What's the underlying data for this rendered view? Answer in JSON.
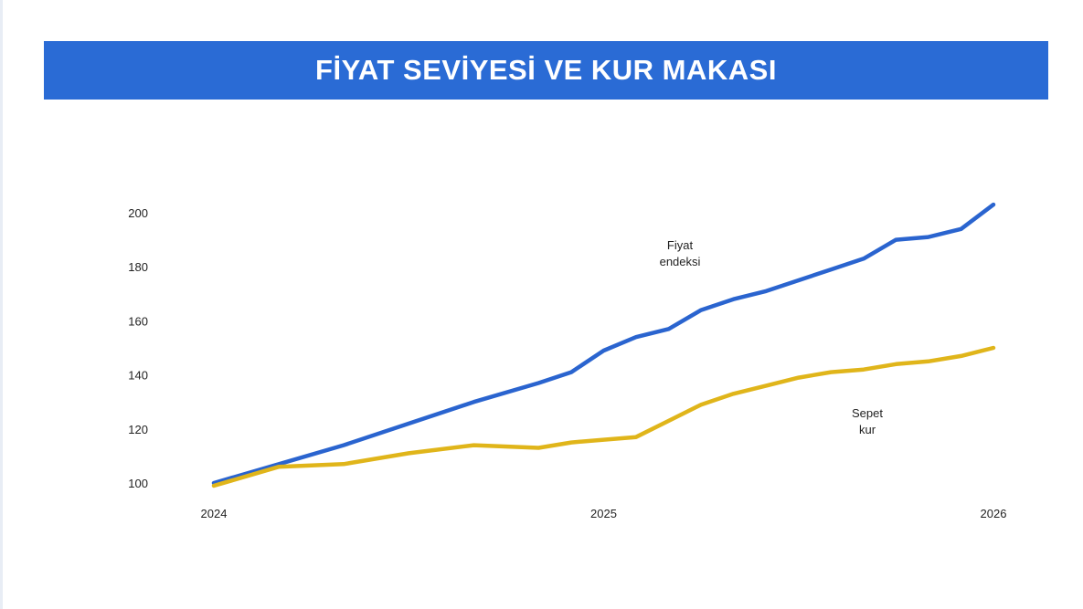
{
  "title": "FİYAT SEVİYESİ VE KUR MAKASI",
  "colors": {
    "title_bar": "#2a6bd5",
    "price_index": "#2a64cf",
    "basket_fx": "#e0b51a",
    "text": "#222222",
    "background": "#ffffff"
  },
  "chart_data": {
    "type": "line",
    "title": "FİYAT SEVİYESİ VE KUR MAKASI",
    "xlabel": "",
    "ylabel": "",
    "xlim": [
      2024,
      2026
    ],
    "ylim": [
      100,
      200
    ],
    "x_ticks": [
      "2024",
      "2025",
      "2026"
    ],
    "y_ticks": [
      "100",
      "120",
      "140",
      "160",
      "180",
      "200"
    ],
    "grid": false,
    "legend": "none",
    "series": [
      {
        "name": "Fiyat endeksi",
        "label_lines": [
          "Fiyat",
          "endeksi"
        ],
        "color": "#2a64cf",
        "x": [
          2024.0,
          2024.167,
          2024.333,
          2024.5,
          2024.667,
          2024.833,
          2024.917,
          2025.0,
          2025.083,
          2025.167,
          2025.25,
          2025.333,
          2025.417,
          2025.5,
          2025.583,
          2025.667,
          2025.75,
          2025.833,
          2025.917,
          2026.0
        ],
        "values": [
          100,
          107,
          114,
          122,
          130,
          137,
          141,
          149,
          154,
          157,
          164,
          168,
          171,
          175,
          179,
          183,
          190,
          191,
          194,
          203
        ]
      },
      {
        "name": "Sepet kur",
        "label_lines": [
          "Sepet",
          "kur"
        ],
        "color": "#e0b51a",
        "x": [
          2024.0,
          2024.167,
          2024.333,
          2024.5,
          2024.667,
          2024.833,
          2024.917,
          2025.0,
          2025.083,
          2025.167,
          2025.25,
          2025.333,
          2025.417,
          2025.5,
          2025.583,
          2025.667,
          2025.75,
          2025.833,
          2025.917,
          2026.0
        ],
        "values": [
          99,
          106,
          107,
          111,
          114,
          113,
          115,
          116,
          117,
          123,
          129,
          133,
          136,
          139,
          141,
          142,
          144,
          145,
          147,
          150
        ]
      }
    ]
  }
}
